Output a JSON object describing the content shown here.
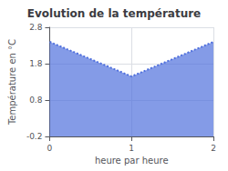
{
  "chart_data": {
    "type": "area",
    "title": "Evolution de la température",
    "xlabel": "heure par heure",
    "ylabel": "Température en °C",
    "x": [
      0,
      1,
      2
    ],
    "values": [
      2.4,
      1.45,
      2.4
    ],
    "xlim": [
      0,
      2
    ],
    "ylim": [
      -0.2,
      2.8
    ],
    "xticks": [
      0,
      1,
      2
    ],
    "yticks": [
      -0.2,
      0.8,
      1.8,
      2.8
    ],
    "grid": true,
    "line_style": "dotted"
  }
}
